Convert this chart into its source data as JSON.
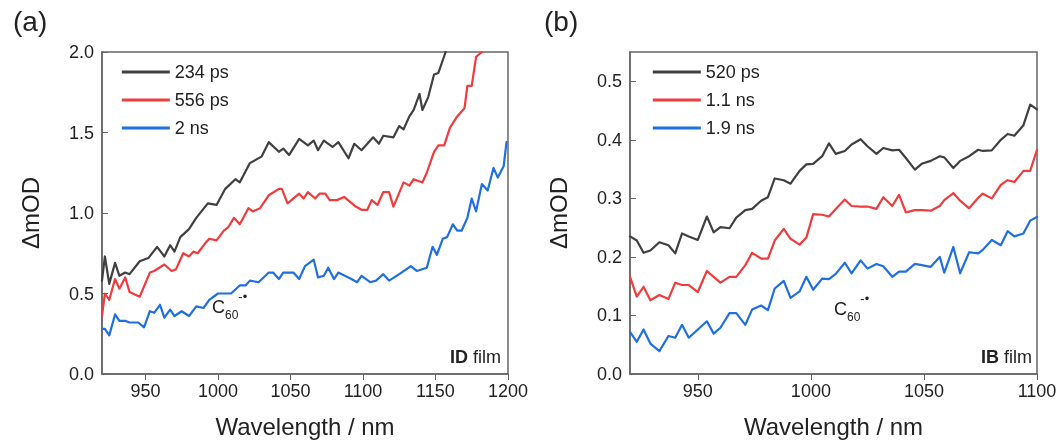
{
  "chart_data": [
    {
      "type": "line",
      "title": "(a)",
      "xlabel": "Wavelength / nm",
      "ylabel": "ΔmOD",
      "legend": "top left",
      "marker": "none",
      "xlim": [
        920,
        1200
      ],
      "ylim": [
        0,
        2
      ],
      "xticks": [
        950,
        1000,
        1050,
        1100,
        1150,
        1200
      ],
      "yticks": [
        {
          "value": 0,
          "label": "0.0"
        },
        {
          "value": 0.5,
          "label": "0.5"
        },
        {
          "value": 1,
          "label": "1.0"
        },
        {
          "value": 1.5,
          "label": "1.5"
        },
        {
          "value": 2,
          "label": "2.0"
        }
      ],
      "annotations": [
        "C$_{60}$$^{-•}$",
        "ID film"
      ],
      "series": [
        {
          "name": "234 ps",
          "color": "#404040",
          "x": [
            920,
            922,
            925,
            929,
            932,
            936,
            939,
            946,
            952,
            958,
            963,
            967,
            970,
            974,
            980,
            985,
            993,
            999,
            1005,
            1012,
            1015,
            1022,
            1030,
            1035,
            1042,
            1045,
            1049,
            1056,
            1062,
            1066,
            1069,
            1073,
            1079,
            1083,
            1090,
            1094,
            1099,
            1107,
            1111,
            1114,
            1121,
            1125,
            1128,
            1132,
            1135,
            1139,
            1141,
            1145,
            1149,
            1152,
            1157
          ],
          "values": [
            0.58,
            0.73,
            0.56,
            0.69,
            0.61,
            0.63,
            0.62,
            0.7,
            0.72,
            0.79,
            0.73,
            0.8,
            0.76,
            0.85,
            0.9,
            0.97,
            1.06,
            1.05,
            1.15,
            1.21,
            1.19,
            1.31,
            1.35,
            1.44,
            1.38,
            1.4,
            1.36,
            1.46,
            1.42,
            1.45,
            1.39,
            1.45,
            1.41,
            1.44,
            1.34,
            1.43,
            1.39,
            1.47,
            1.43,
            1.48,
            1.47,
            1.54,
            1.52,
            1.6,
            1.64,
            1.74,
            1.64,
            1.72,
            1.86,
            1.87,
            2.0
          ]
        },
        {
          "name": "556 ps",
          "color": "#f03c3c",
          "x": [
            920,
            922,
            925,
            929,
            932,
            936,
            939,
            946,
            953,
            956,
            963,
            968,
            971,
            976,
            980,
            983,
            986,
            991,
            994,
            999,
            1004,
            1007,
            1011,
            1015,
            1021,
            1024,
            1029,
            1035,
            1042,
            1044,
            1048,
            1056,
            1059,
            1062,
            1067,
            1070,
            1074,
            1077,
            1082,
            1087,
            1095,
            1099,
            1103,
            1106,
            1110,
            1114,
            1118,
            1121,
            1128,
            1132,
            1135,
            1141,
            1144,
            1149,
            1152,
            1156,
            1160,
            1165,
            1170,
            1172,
            1175,
            1178,
            1182
          ],
          "values": [
            0.36,
            0.5,
            0.46,
            0.59,
            0.53,
            0.6,
            0.51,
            0.48,
            0.63,
            0.64,
            0.68,
            0.64,
            0.65,
            0.75,
            0.73,
            0.76,
            0.75,
            0.81,
            0.84,
            0.83,
            0.89,
            0.91,
            0.97,
            0.93,
            1.03,
            1.01,
            1.03,
            1.11,
            1.15,
            1.15,
            1.06,
            1.12,
            1.09,
            1.13,
            1.09,
            1.12,
            1.12,
            1.08,
            1.08,
            1.1,
            1.04,
            1.02,
            1.02,
            1.08,
            1.05,
            1.13,
            1.13,
            1.04,
            1.19,
            1.17,
            1.21,
            1.19,
            1.25,
            1.38,
            1.42,
            1.42,
            1.53,
            1.6,
            1.65,
            1.79,
            1.79,
            1.97,
            2.0
          ]
        },
        {
          "name": "2 ns",
          "color": "#1f6fe0",
          "x": [
            920,
            922,
            925,
            929,
            932,
            936,
            939,
            945,
            949,
            953,
            956,
            960,
            963,
            967,
            970,
            975,
            980,
            985,
            990,
            994,
            1000,
            1009,
            1015,
            1019,
            1022,
            1028,
            1035,
            1038,
            1042,
            1045,
            1052,
            1056,
            1060,
            1066,
            1069,
            1073,
            1076,
            1080,
            1083,
            1092,
            1096,
            1099,
            1105,
            1109,
            1114,
            1118,
            1125,
            1133,
            1137,
            1144,
            1148,
            1151,
            1155,
            1158,
            1162,
            1165,
            1168,
            1172,
            1175,
            1178,
            1182,
            1186,
            1190,
            1193,
            1197,
            1199
          ],
          "values": [
            0.28,
            0.28,
            0.24,
            0.37,
            0.33,
            0.33,
            0.32,
            0.32,
            0.29,
            0.39,
            0.38,
            0.43,
            0.35,
            0.4,
            0.36,
            0.39,
            0.36,
            0.42,
            0.41,
            0.46,
            0.5,
            0.5,
            0.55,
            0.55,
            0.58,
            0.57,
            0.63,
            0.63,
            0.59,
            0.63,
            0.63,
            0.59,
            0.67,
            0.71,
            0.6,
            0.61,
            0.66,
            0.59,
            0.63,
            0.59,
            0.57,
            0.61,
            0.57,
            0.58,
            0.62,
            0.58,
            0.62,
            0.67,
            0.64,
            0.66,
            0.79,
            0.74,
            0.84,
            0.85,
            0.93,
            0.89,
            0.89,
            0.97,
            1.09,
            1.01,
            1.18,
            1.14,
            1.28,
            1.22,
            1.29,
            1.44
          ]
        }
      ]
    },
    {
      "type": "line",
      "title": "(b)",
      "xlabel": "Wavelength / nm",
      "ylabel": "ΔmOD",
      "legend": "top left",
      "marker": "none",
      "xlim": [
        920,
        1100
      ],
      "ylim": [
        0,
        0.55
      ],
      "xticks": [
        950,
        1000,
        1050,
        1100
      ],
      "yticks": [
        {
          "value": 0,
          "label": "0.0"
        },
        {
          "value": 0.1,
          "label": "0.1"
        },
        {
          "value": 0.2,
          "label": "0.2"
        },
        {
          "value": 0.3,
          "label": "0.3"
        },
        {
          "value": 0.4,
          "label": "0.4"
        },
        {
          "value": 0.5,
          "label": "0.5"
        }
      ],
      "annotations": [
        "C$_{60}$$^{-•}$",
        "IB film"
      ],
      "x": [
        920,
        923,
        926,
        929,
        933,
        937,
        940,
        943,
        946,
        950,
        954,
        957,
        960,
        964,
        967,
        971,
        974,
        978,
        981,
        984,
        988,
        991,
        995,
        998,
        1001,
        1005,
        1008,
        1011,
        1015,
        1018,
        1022,
        1025,
        1029,
        1032,
        1036,
        1039,
        1042,
        1046,
        1049,
        1053,
        1057,
        1059,
        1063,
        1066,
        1070,
        1074,
        1076,
        1080,
        1084,
        1087,
        1090,
        1094,
        1097,
        1100
      ],
      "series": [
        {
          "name": "520 ps",
          "color": "#404040",
          "values": [
            0.235,
            0.228,
            0.207,
            0.211,
            0.225,
            0.22,
            0.206,
            0.24,
            0.235,
            0.229,
            0.269,
            0.242,
            0.251,
            0.249,
            0.267,
            0.28,
            0.282,
            0.296,
            0.302,
            0.334,
            0.331,
            0.325,
            0.347,
            0.358,
            0.359,
            0.372,
            0.394,
            0.376,
            0.381,
            0.392,
            0.401,
            0.389,
            0.376,
            0.386,
            0.382,
            0.383,
            0.369,
            0.349,
            0.359,
            0.364,
            0.372,
            0.37,
            0.352,
            0.364,
            0.372,
            0.383,
            0.381,
            0.382,
            0.4,
            0.41,
            0.407,
            0.425,
            0.46,
            0.452
          ]
        },
        {
          "name": "1.1 ns",
          "color": "#f03c3c",
          "values": [
            0.166,
            0.132,
            0.149,
            0.126,
            0.135,
            0.128,
            0.156,
            0.152,
            0.152,
            0.14,
            0.176,
            0.166,
            0.156,
            0.166,
            0.166,
            0.186,
            0.207,
            0.197,
            0.197,
            0.228,
            0.248,
            0.231,
            0.221,
            0.233,
            0.273,
            0.272,
            0.269,
            0.282,
            0.298,
            0.287,
            0.286,
            0.286,
            0.282,
            0.302,
            0.287,
            0.306,
            0.276,
            0.28,
            0.28,
            0.279,
            0.287,
            0.297,
            0.309,
            0.296,
            0.283,
            0.301,
            0.308,
            0.3,
            0.323,
            0.331,
            0.328,
            0.347,
            0.347,
            0.383
          ]
        },
        {
          "name": "1.9 ns",
          "color": "#1f6fe0",
          "values": [
            0.072,
            0.055,
            0.076,
            0.052,
            0.039,
            0.065,
            0.062,
            0.084,
            0.062,
            0.076,
            0.09,
            0.069,
            0.079,
            0.104,
            0.104,
            0.084,
            0.11,
            0.117,
            0.109,
            0.146,
            0.159,
            0.13,
            0.141,
            0.166,
            0.144,
            0.163,
            0.162,
            0.171,
            0.19,
            0.172,
            0.194,
            0.18,
            0.188,
            0.184,
            0.166,
            0.175,
            0.175,
            0.188,
            0.186,
            0.183,
            0.2,
            0.173,
            0.217,
            0.172,
            0.208,
            0.206,
            0.212,
            0.229,
            0.22,
            0.244,
            0.235,
            0.24,
            0.262,
            0.268
          ]
        }
      ]
    }
  ]
}
